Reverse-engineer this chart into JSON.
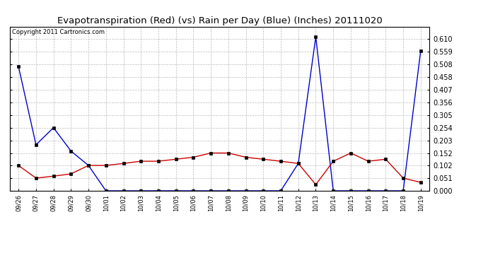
{
  "title": "Evapotranspiration (Red) (vs) Rain per Day (Blue) (Inches) 20111020",
  "copyright": "Copyright 2011 Cartronics.com",
  "labels": [
    "09/26",
    "09/27",
    "09/28",
    "09/29",
    "09/30",
    "10/01",
    "10/02",
    "10/03",
    "10/04",
    "10/05",
    "10/06",
    "10/07",
    "10/08",
    "10/09",
    "10/10",
    "10/11",
    "10/12",
    "10/13",
    "10/14",
    "10/15",
    "10/16",
    "10/17",
    "10/18",
    "10/19"
  ],
  "blue_rain": [
    0.5,
    0.185,
    0.254,
    0.16,
    0.102,
    0.0,
    0.0,
    0.0,
    0.0,
    0.0,
    0.0,
    0.0,
    0.0,
    0.0,
    0.0,
    0.0,
    0.11,
    0.62,
    0.0,
    0.0,
    0.0,
    0.0,
    0.0,
    0.564
  ],
  "red_et": [
    0.102,
    0.051,
    0.059,
    0.068,
    0.102,
    0.102,
    0.11,
    0.119,
    0.119,
    0.127,
    0.135,
    0.152,
    0.152,
    0.135,
    0.127,
    0.119,
    0.11,
    0.025,
    0.119,
    0.152,
    0.119,
    0.127,
    0.051,
    0.034
  ],
  "ylim": [
    0.0,
    0.661
  ],
  "yticks": [
    0.0,
    0.051,
    0.102,
    0.152,
    0.203,
    0.254,
    0.305,
    0.356,
    0.407,
    0.458,
    0.508,
    0.559,
    0.61
  ],
  "background_color": "#ffffff",
  "grid_color": "#bbbbbb",
  "blue_color": "#0000cc",
  "red_color": "#cc0000",
  "title_fontsize": 9.5,
  "copyright_fontsize": 6,
  "tick_fontsize": 7,
  "xtick_fontsize": 6
}
